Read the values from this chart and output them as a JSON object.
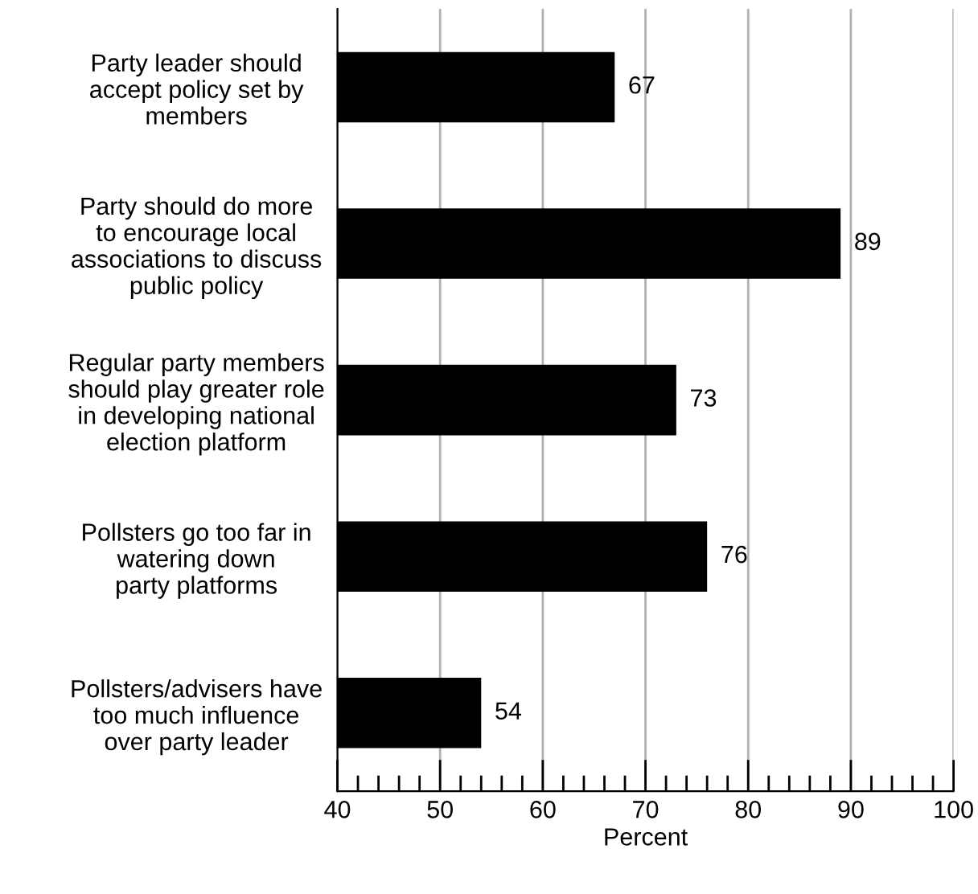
{
  "chart_data": {
    "type": "bar",
    "orientation": "horizontal",
    "xlabel": "Percent",
    "categories": [
      "Party leader should\naccept policy set by\nmembers",
      "Party should do more\nto encourage local\nassociations to discuss\npublic policy",
      "Regular party members\nshould play greater role\nin developing national\nelection platform",
      "Pollsters go too far in\nwatering down\nparty platforms",
      "Pollsters/advisers have\ntoo much influence\nover party leader"
    ],
    "values": [
      67,
      89,
      73,
      76,
      54
    ],
    "color": "#000000",
    "xlim": [
      40,
      100
    ],
    "xticks": [
      40,
      {
        "value": 42,
        "label": null
      },
      {
        "value": 44,
        "label": null
      },
      {
        "value": 46,
        "label": null
      },
      {
        "value": 48,
        "label": null
      },
      50,
      {
        "value": 52,
        "label": null
      },
      {
        "value": 54,
        "label": null
      },
      {
        "value": 56,
        "label": null
      },
      {
        "value": 58,
        "label": null
      },
      60,
      {
        "value": 62,
        "label": null
      },
      {
        "value": 64,
        "label": null
      },
      {
        "value": 66,
        "label": null
      },
      {
        "value": 68,
        "label": null
      },
      70,
      {
        "value": 72,
        "label": null
      },
      {
        "value": 74,
        "label": null
      },
      {
        "value": 76,
        "label": null
      },
      {
        "value": 78,
        "label": null
      },
      80,
      {
        "value": 82,
        "label": null
      },
      {
        "value": 84,
        "label": null
      },
      {
        "value": 86,
        "label": null
      },
      {
        "value": 88,
        "label": null
      },
      90,
      {
        "value": 92,
        "label": null
      },
      {
        "value": 94,
        "label": null
      },
      {
        "value": 96,
        "label": null
      },
      {
        "value": 98,
        "label": null
      },
      100
    ],
    "grid": "x",
    "data_labels": true
  }
}
